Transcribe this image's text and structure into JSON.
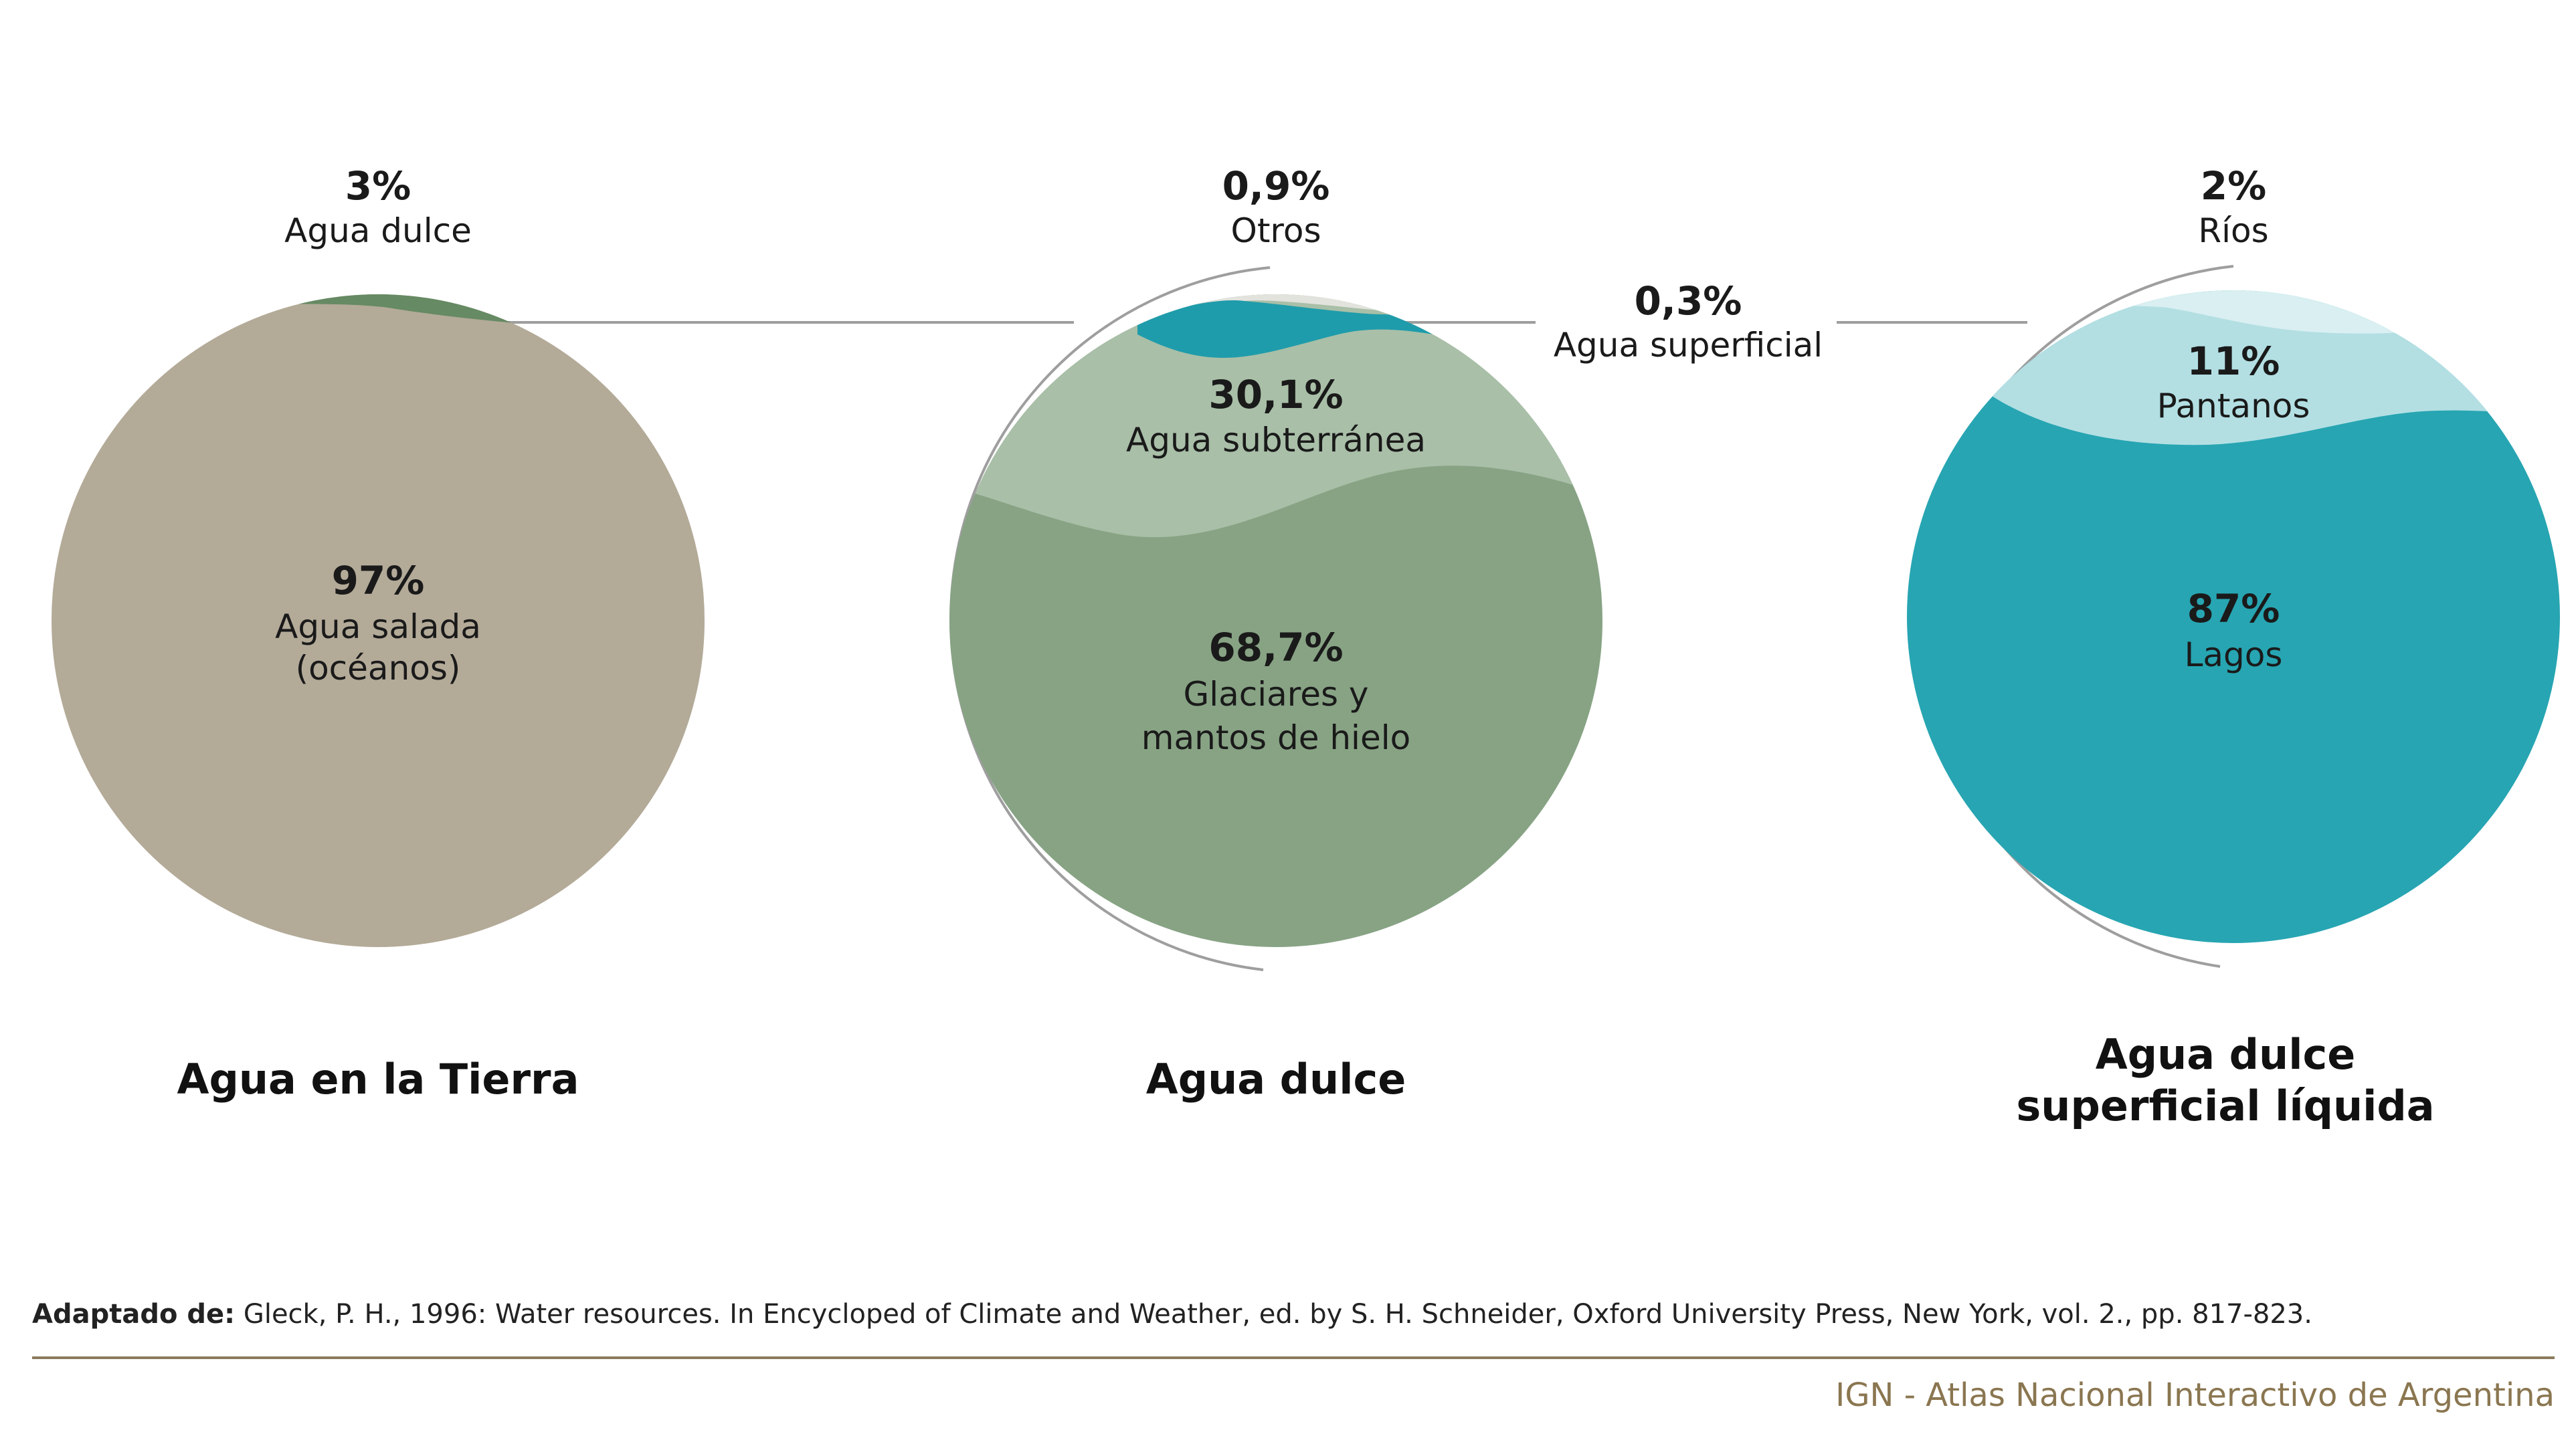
{
  "chart_data": [
    {
      "type": "pie",
      "title": "Agua en la Tierra",
      "slices": [
        {
          "value_label": "97%",
          "label_lines": [
            "Agua salada",
            "(océanos)"
          ],
          "value": 97,
          "color": "#b3aa98"
        },
        {
          "value_label": "3%",
          "label_lines": [
            "Agua dulce"
          ],
          "value": 3,
          "color": "#668a63"
        }
      ]
    },
    {
      "type": "pie",
      "title": "Agua dulce",
      "slices": [
        {
          "value_label": "68,7%",
          "label_lines": [
            "Glaciares y",
            "mantos de hielo"
          ],
          "value": 68.7,
          "color": "#87a384"
        },
        {
          "value_label": "30,1%",
          "label_lines": [
            "Agua subterránea"
          ],
          "value": 30.1,
          "color": "#a9bfa8"
        },
        {
          "value_label": "0,9%",
          "label_lines": [
            "Otros"
          ],
          "value": 0.9,
          "color": "#e3e3de"
        },
        {
          "value_label": "0,3%",
          "label_lines": [
            "Agua superficial"
          ],
          "value": 0.3,
          "color": "#1f9cab"
        }
      ]
    },
    {
      "type": "pie",
      "title_lines": [
        "Agua dulce",
        "superficial líquida"
      ],
      "slices": [
        {
          "value_label": "87%",
          "label_lines": [
            "Lagos"
          ],
          "value": 87,
          "color": "#27a5b2"
        },
        {
          "value_label": "11%",
          "label_lines": [
            "Pantanos"
          ],
          "value": 11,
          "color": "#b3dfe3"
        },
        {
          "value_label": "2%",
          "label_lines": [
            "Ríos"
          ],
          "value": 2,
          "color": "#d9eff1"
        }
      ]
    }
  ],
  "source": {
    "prefix": "Adaptado de:",
    "text": " Gleck, P. H., 1996: Water resources. In Encycloped of Climate and Weather, ed. by S. H. Schneider, Oxford University Press, New York, vol. 2., pp. 817-823."
  },
  "footer": "IGN - Atlas Nacional Interactivo de Argentina",
  "colors": {
    "connector": "#9e9e9e",
    "rule": "#8a7a5c",
    "footer_text": "#8a7650"
  }
}
